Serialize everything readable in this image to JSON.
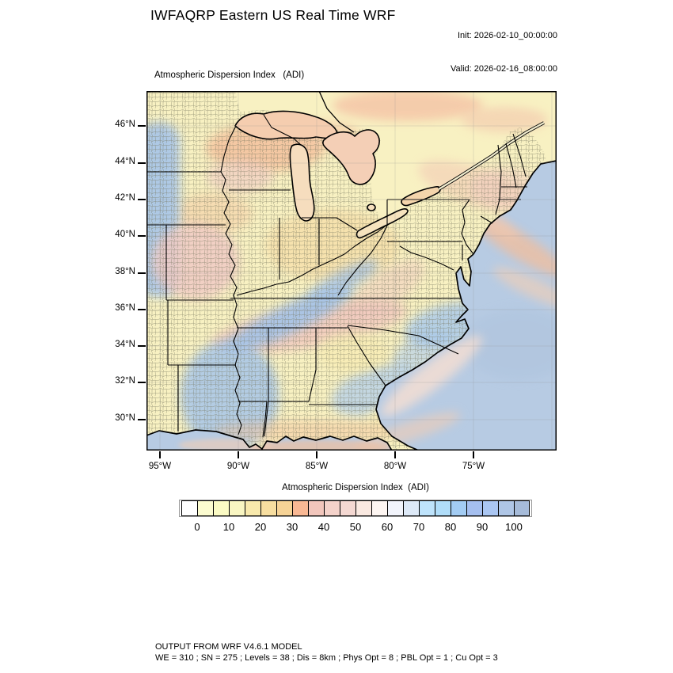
{
  "header": {
    "title": "IWFAQRP Eastern US Real Time WRF",
    "init": "Init: 2026-02-10_00:00:00",
    "valid": "Valid: 2026-02-16_08:00:00"
  },
  "map": {
    "title": "Atmospheric Dispersion Index   (ADI)",
    "lat_ticks": [
      "46°N",
      "44°N",
      "42°N",
      "40°N",
      "38°N",
      "36°N",
      "34°N",
      "32°N",
      "30°N"
    ],
    "lon_ticks": [
      "95°W",
      "90°W",
      "85°W",
      "80°W",
      "75°W"
    ]
  },
  "colorbar": {
    "title": "Atmospheric Dispersion Index  (ADI)",
    "tick_labels": [
      "0",
      "10",
      "20",
      "30",
      "40",
      "50",
      "60",
      "70",
      "80",
      "90",
      "100"
    ],
    "value_step_per_cell": 5,
    "cell_colors": [
      "#FFFFFF",
      "#FCFCD0",
      "#FBFBC4",
      "#F9F6C2",
      "#F8E9AC",
      "#F7DEA0",
      "#F6D396",
      "#F9B894",
      "#F2C6BC",
      "#F4D2CA",
      "#F4D8D2",
      "#FAE9E1",
      "#FEF6F2",
      "#F2F4FB",
      "#DDE9F7",
      "#BEE3FB",
      "#B0DDF9",
      "#A3CCF3",
      "#A5BFEF",
      "#AAC6F2",
      "#AFC6E6",
      "#A6BBD9"
    ]
  },
  "footer": {
    "line1": "OUTPUT FROM WRF V4.6.1 MODEL",
    "line2": "WE = 310 ; SN = 275 ; Levels = 38 ; Dis = 8km ; Phys Opt = 8 ; PBL Opt = 1 ; Cu Opt = 3"
  },
  "map_colors": {
    "ocean": "#B7CBE3",
    "land_base": "#F8F1C2",
    "low_adi_blue": "#A7C5E9",
    "mid_adi_pink": "#F0C6BE",
    "high_adi_orange": "#F4C29E"
  }
}
